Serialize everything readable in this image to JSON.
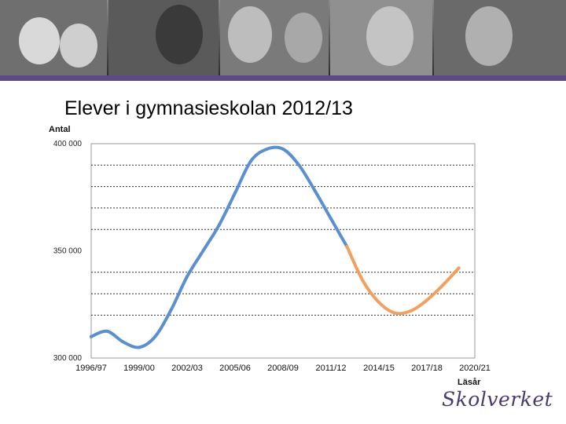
{
  "slide": {
    "title": "Elever i gymnasieskolan 2012/13",
    "logo_text": "Skolverket",
    "accent_color": "#5c4b86",
    "photo_strip_icon": "student-portraits-photo"
  },
  "chart_data": {
    "type": "line",
    "title": "",
    "ylabel": "Antal",
    "xlabel": "Läsår",
    "ylim": [
      300000,
      400000
    ],
    "yticks": [
      300000,
      350000,
      400000
    ],
    "ytick_labels": [
      "300 000",
      "350 000",
      "400 000"
    ],
    "dashed_gridlines": [
      320000,
      330000,
      340000,
      360000,
      370000,
      380000,
      390000
    ],
    "x_categories": [
      "1996/97",
      "1997/98",
      "1998/99",
      "1999/00",
      "2000/01",
      "2001/02",
      "2002/03",
      "2003/04",
      "2004/05",
      "2005/06",
      "2006/07",
      "2007/08",
      "2008/09",
      "2009/10",
      "2010/11",
      "2011/12",
      "2012/13",
      "2013/14",
      "2014/15",
      "2015/16",
      "2016/17",
      "2017/18",
      "2018/19",
      "2019/20",
      "2020/21"
    ],
    "x_tick_labels": [
      "1996/97",
      "1999/00",
      "2002/03",
      "2005/06",
      "2008/09",
      "2011/12",
      "2014/15",
      "2017/18",
      "2020/21"
    ],
    "series": [
      {
        "color": "#5b8fd0",
        "x": [
          "1996/97",
          "1997/98",
          "1998/99",
          "1999/00",
          "2000/01",
          "2001/02",
          "2002/03",
          "2003/04",
          "2004/05",
          "2005/06",
          "2006/07",
          "2007/08",
          "2008/09",
          "2009/10",
          "2010/11",
          "2011/12",
          "2012/13"
        ],
        "values": [
          310000,
          312500,
          307500,
          305000,
          310000,
          322500,
          338000,
          350000,
          362000,
          377000,
          392000,
          397500,
          397500,
          390000,
          378000,
          365000,
          352000
        ]
      },
      {
        "color": "#f0a060",
        "x": [
          "2012/13",
          "2013/14",
          "2014/15",
          "2015/16",
          "2016/17",
          "2017/18",
          "2018/19",
          "2019/20"
        ],
        "values": [
          352000,
          336000,
          326000,
          321000,
          322000,
          327000,
          334000,
          342000
        ]
      }
    ]
  }
}
